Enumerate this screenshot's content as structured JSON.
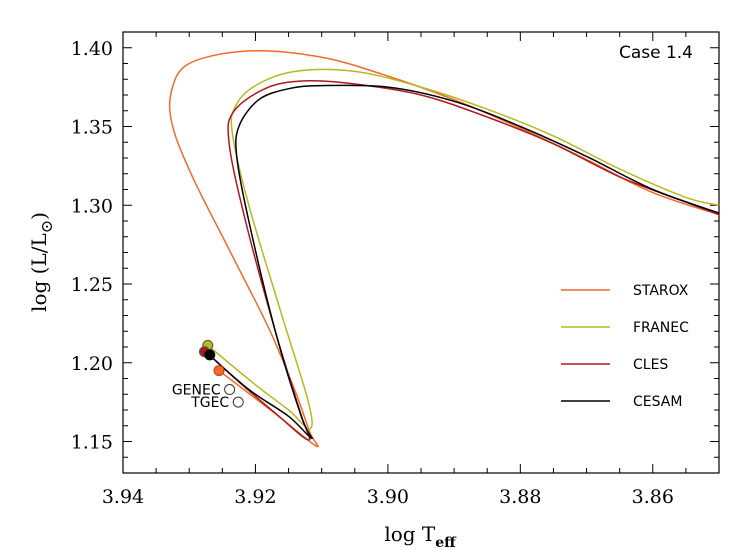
{
  "chart_data": {
    "type": "line",
    "title": "",
    "annotation": "Case 1.4",
    "xlabel": {
      "prefix": "log T",
      "sub": "eff"
    },
    "ylabel": {
      "prefix": "log (L/L",
      "sun": "⊙",
      "suffix": ")"
    },
    "xlim": [
      3.94,
      3.85
    ],
    "ylim": [
      1.13,
      1.41
    ],
    "xticks": [
      3.94,
      3.92,
      3.9,
      3.88,
      3.86
    ],
    "xtick_labels": [
      "3.94",
      "3.92",
      "3.90",
      "3.88",
      "3.86"
    ],
    "yticks": [
      1.15,
      1.2,
      1.25,
      1.3,
      1.35,
      1.4
    ],
    "ytick_labels": [
      "1.15",
      "1.20",
      "1.25",
      "1.30",
      "1.35",
      "1.40"
    ],
    "grid": false,
    "legend_position": "right",
    "series": [
      {
        "name": "STAROX",
        "color": "#f26a2a",
        "points": [
          [
            3.9255,
            1.195
          ],
          [
            3.9165,
            1.166
          ],
          [
            3.9108,
            1.147
          ],
          [
            3.9118,
            1.156
          ],
          [
            3.914,
            1.182
          ],
          [
            3.918,
            1.222
          ],
          [
            3.924,
            1.272
          ],
          [
            3.9295,
            1.318
          ],
          [
            3.9325,
            1.35
          ],
          [
            3.9327,
            1.372
          ],
          [
            3.93,
            1.39
          ],
          [
            3.921,
            1.398
          ],
          [
            3.91,
            1.394
          ],
          [
            3.9,
            1.382
          ],
          [
            3.89,
            1.367
          ],
          [
            3.88,
            1.349
          ],
          [
            3.87,
            1.329
          ],
          [
            3.86,
            1.308
          ],
          [
            3.85,
            1.294
          ]
        ]
      },
      {
        "name": "FRANEC",
        "color": "#b8b820",
        "points": [
          [
            3.9272,
            1.211
          ],
          [
            3.92,
            1.186
          ],
          [
            3.915,
            1.17
          ],
          [
            3.9118,
            1.158
          ],
          [
            3.912,
            1.175
          ],
          [
            3.916,
            1.23
          ],
          [
            3.921,
            1.3
          ],
          [
            3.9235,
            1.346
          ],
          [
            3.923,
            1.363
          ],
          [
            3.92,
            1.376
          ],
          [
            3.914,
            1.385
          ],
          [
            3.905,
            1.385
          ],
          [
            3.895,
            1.375
          ],
          [
            3.885,
            1.361
          ],
          [
            3.875,
            1.344
          ],
          [
            3.865,
            1.323
          ],
          [
            3.855,
            1.305
          ],
          [
            3.85,
            1.3
          ]
        ]
      },
      {
        "name": "CLES",
        "color": "#b01820",
        "points": [
          [
            3.9275,
            1.207
          ],
          [
            3.922,
            1.186
          ],
          [
            3.917,
            1.168
          ],
          [
            3.912,
            1.151
          ],
          [
            3.9132,
            1.168
          ],
          [
            3.917,
            1.22
          ],
          [
            3.9215,
            1.29
          ],
          [
            3.924,
            1.34
          ],
          [
            3.9232,
            1.36
          ],
          [
            3.918,
            1.375
          ],
          [
            3.912,
            1.379
          ],
          [
            3.905,
            1.377
          ],
          [
            3.895,
            1.37
          ],
          [
            3.885,
            1.356
          ],
          [
            3.875,
            1.339
          ],
          [
            3.865,
            1.318
          ],
          [
            3.855,
            1.302
          ],
          [
            3.85,
            1.294
          ]
        ]
      },
      {
        "name": "CESAM",
        "color": "#000000",
        "points": [
          [
            3.927,
            1.205
          ],
          [
            3.921,
            1.183
          ],
          [
            3.915,
            1.166
          ],
          [
            3.9115,
            1.152
          ],
          [
            3.913,
            1.165
          ],
          [
            3.917,
            1.22
          ],
          [
            3.921,
            1.29
          ],
          [
            3.9228,
            1.33
          ],
          [
            3.9225,
            1.35
          ],
          [
            3.9195,
            1.367
          ],
          [
            3.915,
            1.374
          ],
          [
            3.91,
            1.376
          ],
          [
            3.9,
            1.375
          ],
          [
            3.89,
            1.366
          ],
          [
            3.88,
            1.35
          ],
          [
            3.87,
            1.331
          ],
          [
            3.86,
            1.31
          ],
          [
            3.85,
            1.295
          ]
        ]
      }
    ],
    "markers": [
      {
        "series": "FRANEC",
        "x": 3.9272,
        "y": 1.211,
        "fill": "#b8b820",
        "stroke": "#555555"
      },
      {
        "series": "CLES",
        "x": 3.9277,
        "y": 1.207,
        "fill": "#b01820",
        "stroke": "#555555"
      },
      {
        "series": "CESAM",
        "x": 3.9269,
        "y": 1.205,
        "fill": "#000000",
        "stroke": "#000000"
      },
      {
        "series": "STAROX",
        "x": 3.9255,
        "y": 1.195,
        "fill": "#f26a2a",
        "stroke": "#c04010"
      },
      {
        "series": "GENEC",
        "x": 3.9239,
        "y": 1.183,
        "fill": "#ffffff",
        "stroke": "#333333"
      },
      {
        "series": "TGEC",
        "x": 3.9226,
        "y": 1.175,
        "fill": "#ffffff",
        "stroke": "#333333"
      }
    ],
    "point_labels": [
      {
        "text": "GENEC",
        "x": 3.9239,
        "y": 1.183
      },
      {
        "text": "TGEC",
        "x": 3.9226,
        "y": 1.175
      }
    ]
  }
}
